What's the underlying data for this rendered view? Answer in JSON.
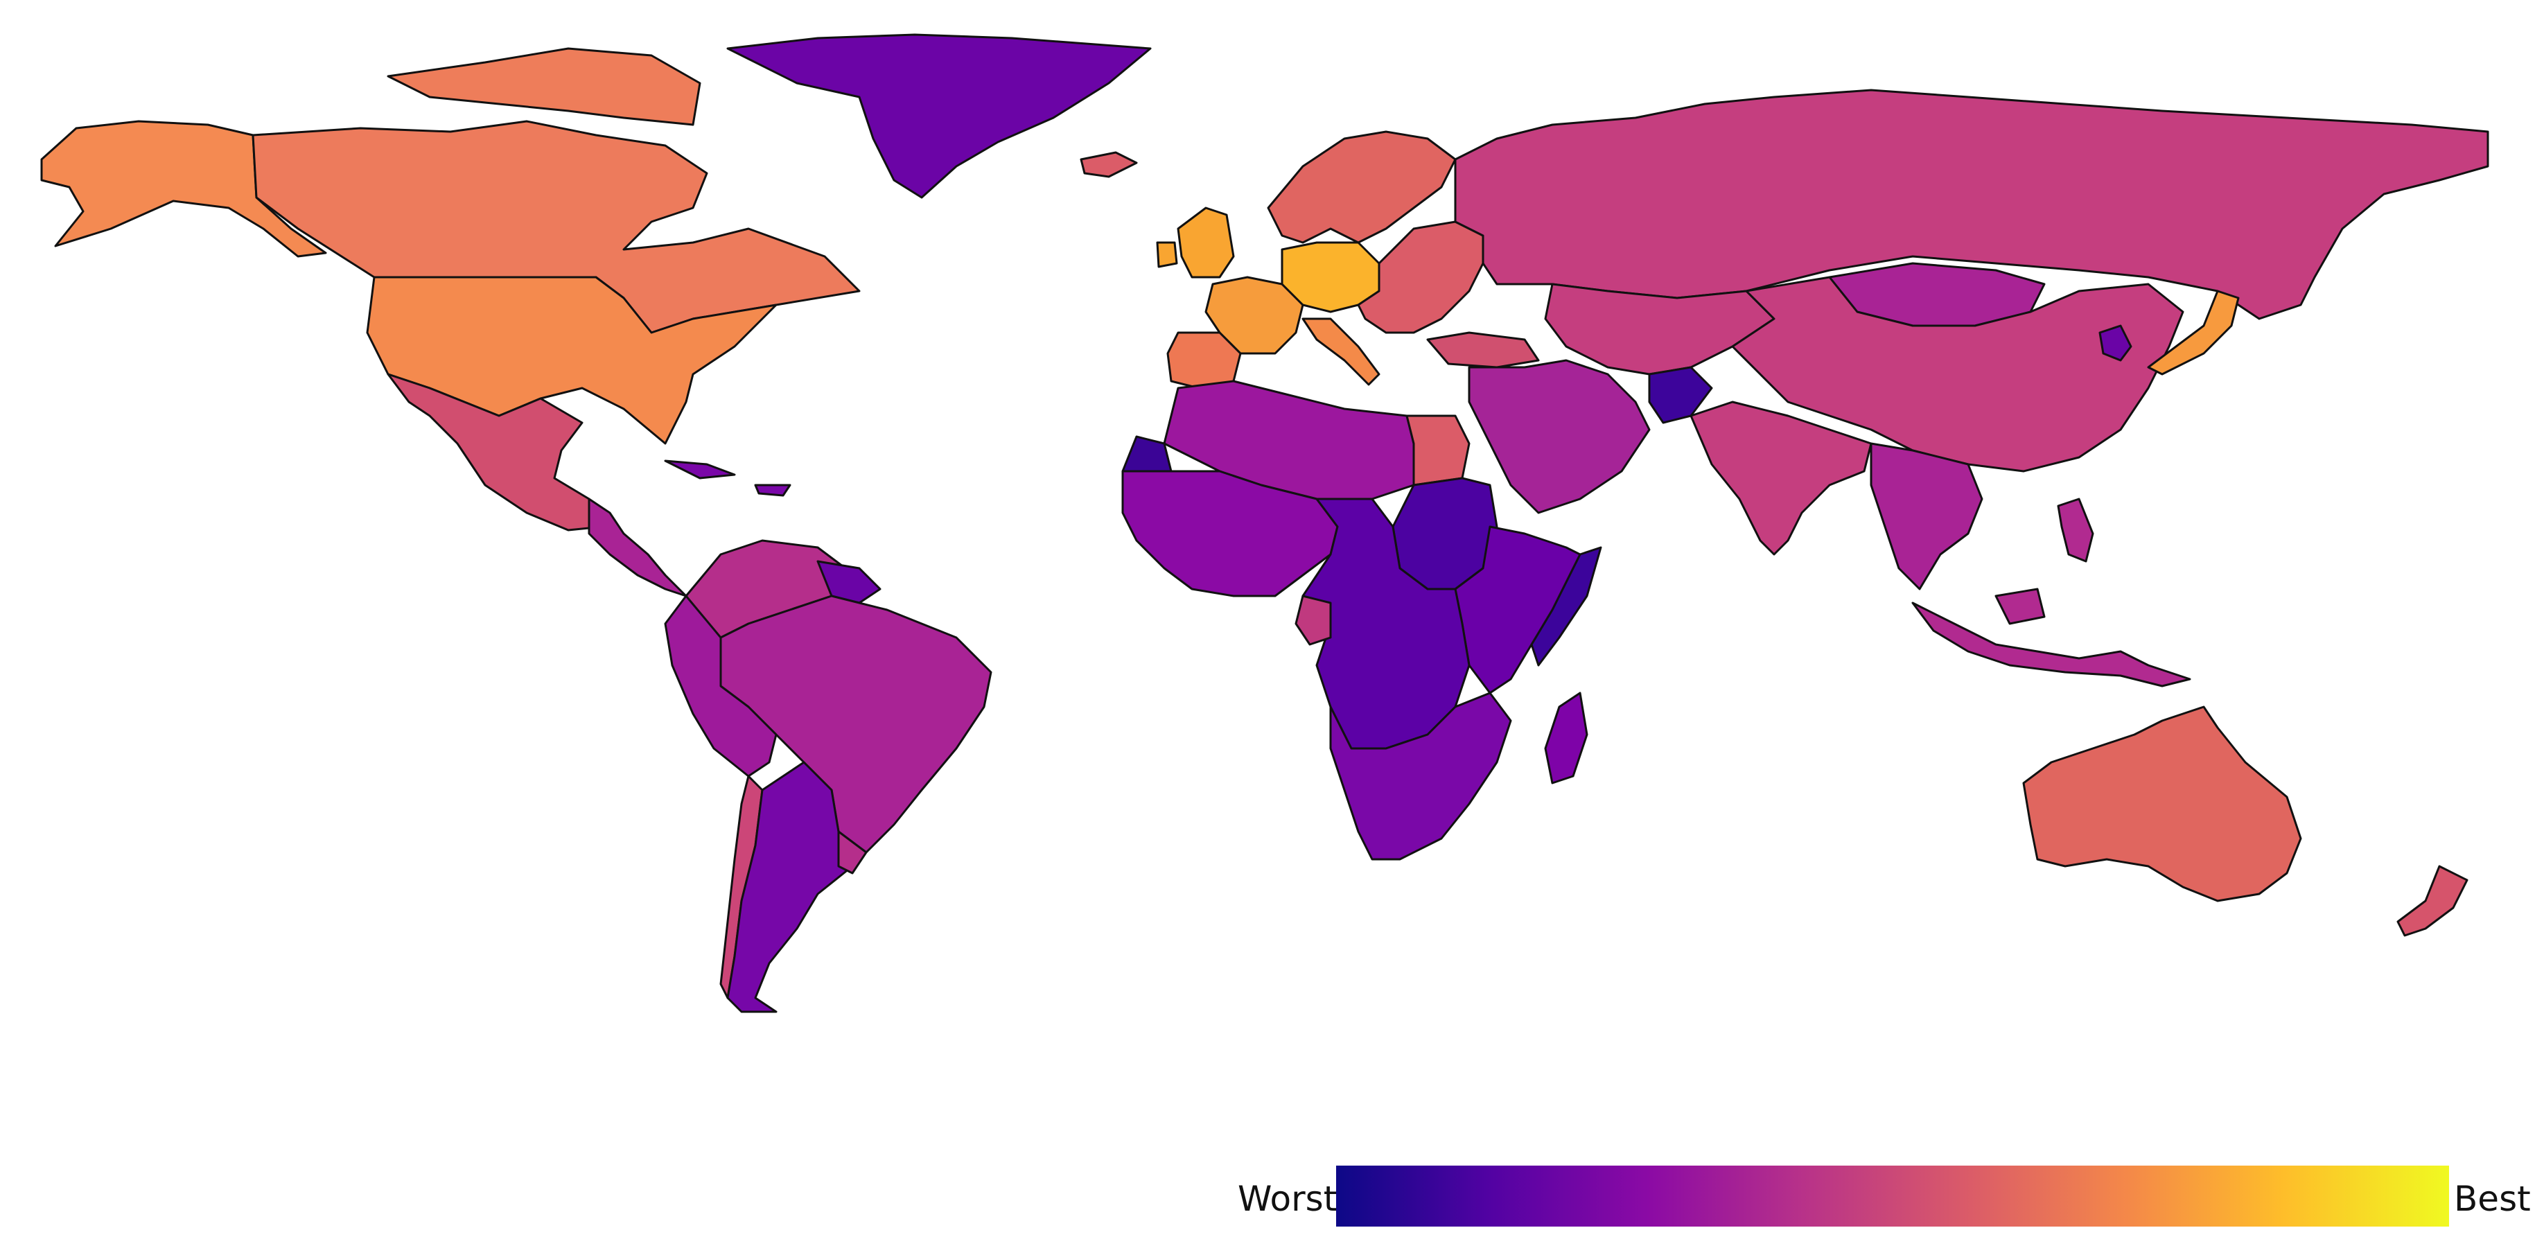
{
  "legend": {
    "min_label": "Worst",
    "max_label": "Best",
    "colors": [
      "#0d0887",
      "#5302a3",
      "#8b0aa5",
      "#b83289",
      "#db5c68",
      "#f48849",
      "#febd2a",
      "#f0f921"
    ]
  },
  "regions": [
    {
      "name": "alaska",
      "color": "#f48a52",
      "level": 0.72
    },
    {
      "name": "canada",
      "color": "#ed7b5c",
      "level": 0.69
    },
    {
      "name": "arctic-archipelago",
      "color": "#ee7d5a",
      "level": 0.69
    },
    {
      "name": "greenland",
      "color": "#6b04a6",
      "level": 0.18
    },
    {
      "name": "iceland",
      "color": "#db5c68",
      "level": 0.6
    },
    {
      "name": "united-states",
      "color": "#f48a4e",
      "level": 0.72
    },
    {
      "name": "mexico",
      "color": "#d14e6f",
      "level": 0.55
    },
    {
      "name": "central-america",
      "color": "#a92395",
      "level": 0.38
    },
    {
      "name": "caribbean",
      "color": "#7a07a8",
      "level": 0.22
    },
    {
      "name": "venezuela-colombia",
      "color": "#b52e8b",
      "level": 0.42
    },
    {
      "name": "guianas",
      "color": "#6a04a6",
      "level": 0.18
    },
    {
      "name": "brazil",
      "color": "#a92395",
      "level": 0.38
    },
    {
      "name": "andean-west",
      "color": "#9e1a9b",
      "level": 0.35
    },
    {
      "name": "chile",
      "color": "#cc4678",
      "level": 0.52
    },
    {
      "name": "argentina",
      "color": "#7607a8",
      "level": 0.22
    },
    {
      "name": "uruguay",
      "color": "#b52e8b",
      "level": 0.42
    },
    {
      "name": "uk-ireland",
      "color": "#f9a531",
      "level": 0.85
    },
    {
      "name": "scandinavia",
      "color": "#e06561",
      "level": 0.63
    },
    {
      "name": "western-europe",
      "color": "#f69c3c",
      "level": 0.8
    },
    {
      "name": "germany-benelux",
      "color": "#fbb32c",
      "level": 0.88
    },
    {
      "name": "iberia",
      "color": "#ee7853",
      "level": 0.7
    },
    {
      "name": "italy",
      "color": "#f48a49",
      "level": 0.73
    },
    {
      "name": "eastern-europe",
      "color": "#db5c68",
      "level": 0.6
    },
    {
      "name": "russia",
      "color": "#c53e7f",
      "level": 0.5
    },
    {
      "name": "central-asia",
      "color": "#c53e7f",
      "level": 0.5
    },
    {
      "name": "mongolia",
      "color": "#a92395",
      "level": 0.38
    },
    {
      "name": "china",
      "color": "#c53e7f",
      "level": 0.5
    },
    {
      "name": "japan",
      "color": "#f79a3e",
      "level": 0.8
    },
    {
      "name": "korea",
      "color": "#6a04a6",
      "level": 0.18
    },
    {
      "name": "middle-east",
      "color": "#a52497",
      "level": 0.37
    },
    {
      "name": "turkey",
      "color": "#d0506f",
      "level": 0.55
    },
    {
      "name": "afghanistan",
      "color": "#3d049b",
      "level": 0.08
    },
    {
      "name": "india",
      "color": "#c53e7f",
      "level": 0.5
    },
    {
      "name": "southeast-asia",
      "color": "#a92395",
      "level": 0.38
    },
    {
      "name": "indonesia",
      "color": "#b12a90",
      "level": 0.4
    },
    {
      "name": "philippines",
      "color": "#b12a90",
      "level": 0.4
    },
    {
      "name": "australia",
      "color": "#e0665f",
      "level": 0.63
    },
    {
      "name": "new-zealand",
      "color": "#d6546b",
      "level": 0.57
    },
    {
      "name": "north-africa",
      "color": "#9c179e",
      "level": 0.34
    },
    {
      "name": "egypt",
      "color": "#db5c68",
      "level": 0.6
    },
    {
      "name": "western-sahara",
      "color": "#3b0496",
      "level": 0.07
    },
    {
      "name": "west-africa",
      "color": "#8b0aa5",
      "level": 0.28
    },
    {
      "name": "sudan",
      "color": "#4c02a1",
      "level": 0.11
    },
    {
      "name": "somalia",
      "color": "#3c049b",
      "level": 0.08
    },
    {
      "name": "east-africa",
      "color": "#6a00a8",
      "level": 0.18
    },
    {
      "name": "central-africa",
      "color": "#5c01a6",
      "level": 0.15
    },
    {
      "name": "gabon",
      "color": "#c0397f",
      "level": 0.48
    },
    {
      "name": "southern-africa",
      "color": "#7a08a8",
      "level": 0.22
    },
    {
      "name": "madagascar",
      "color": "#7e03a8",
      "level": 0.24
    }
  ]
}
